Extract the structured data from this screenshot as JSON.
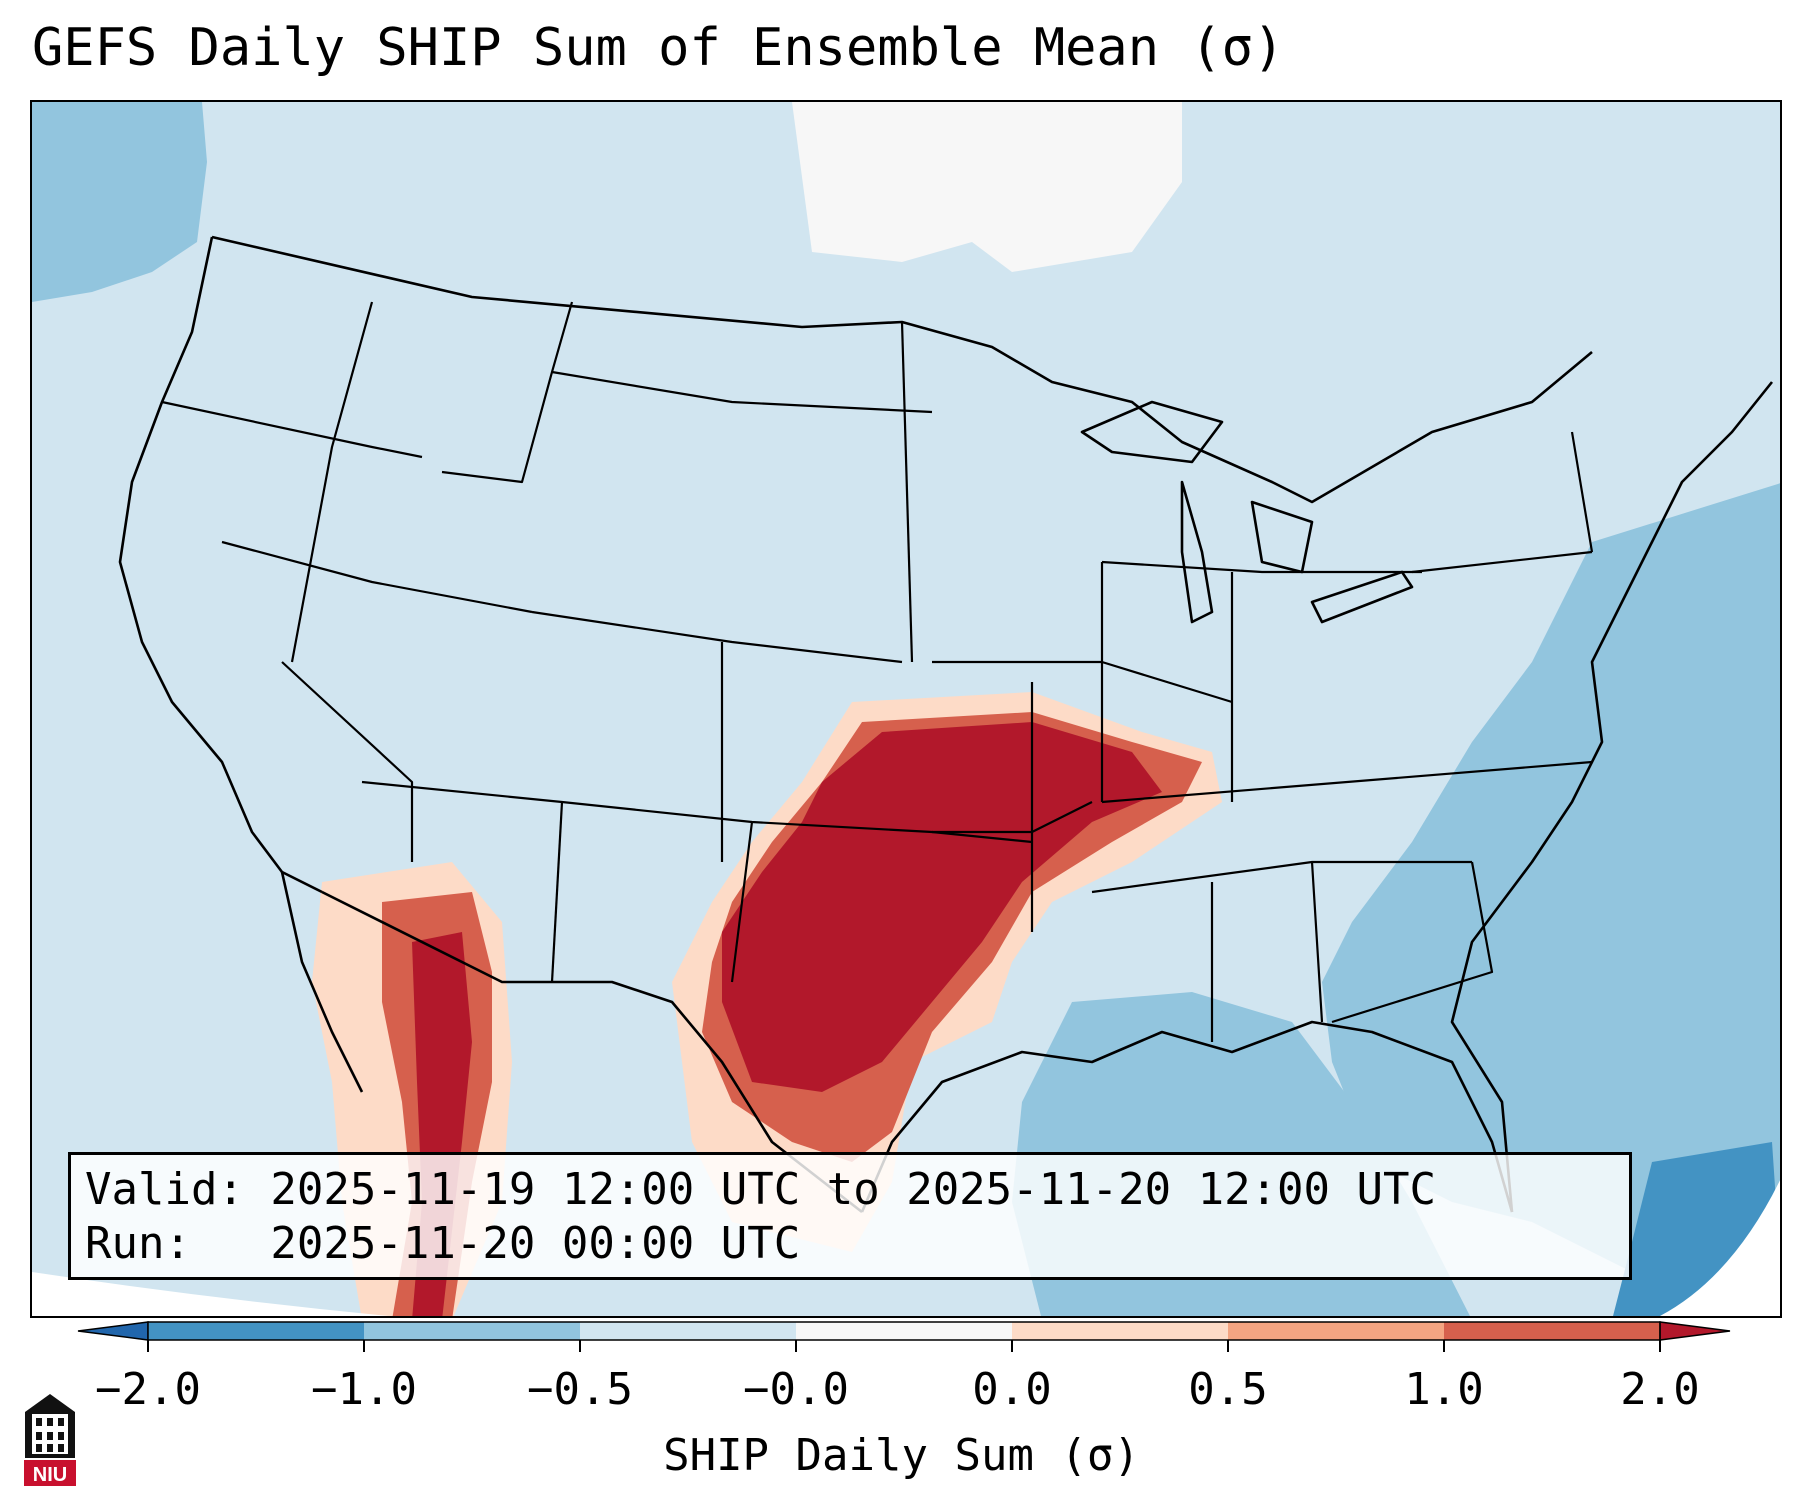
{
  "title": "GEFS Daily SHIP Sum of Ensemble Mean (σ)",
  "info": {
    "valid_line": "Valid: 2025-11-19 12:00 UTC to 2025-11-20 12:00 UTC",
    "run_line": "Run:   2025-11-20 00:00 UTC"
  },
  "colorbar": {
    "label": "SHIP Daily Sum (σ)",
    "ticks": [
      "−2.0",
      "−1.0",
      "−0.5",
      "−0.0",
      "0.0",
      "0.5",
      "1.0",
      "2.0"
    ],
    "colors": {
      "under": "#2166ac",
      "c1": "#4393c3",
      "c2": "#92c5de",
      "c3": "#d1e5f0",
      "c4": "#f7f7f7",
      "c5": "#fddbc7",
      "c6": "#f4a582",
      "c7": "#d6604d",
      "over": "#b2182b"
    }
  },
  "map": {
    "colors": {
      "background": "#d1e5f0",
      "ocean_mid": "#92c5de",
      "ocean_deep": "#4393c3",
      "none": "#f7f7f7",
      "light_red": "#fddbc7",
      "salmon": "#f4a582",
      "red": "#d6604d",
      "dark_red": "#b2182b",
      "boundary": "#000000"
    }
  },
  "logo": {
    "text": "NIU",
    "icon": "university-tower-icon",
    "color": "#c8102e"
  }
}
